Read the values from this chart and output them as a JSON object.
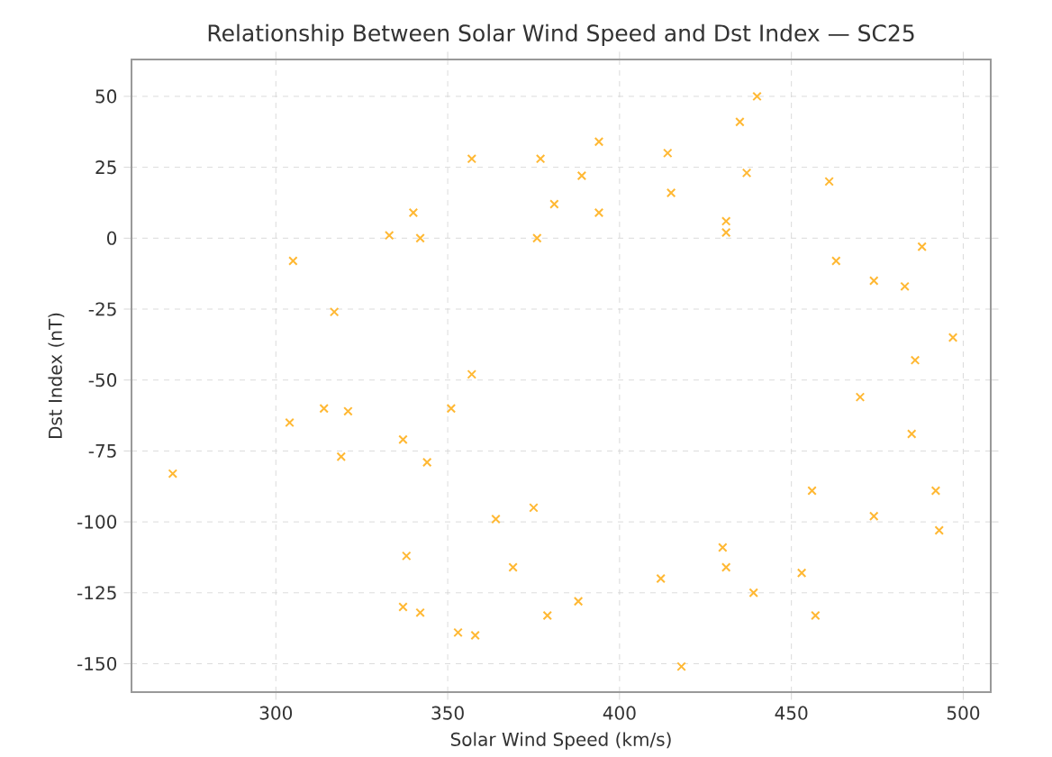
{
  "chart_data": {
    "type": "scatter",
    "title": "Relationship Between Solar Wind Speed and Dst Index — SC25",
    "xlabel": "Solar Wind Speed (km/s)",
    "ylabel": "Dst Index (nT)",
    "marker": "cross",
    "grid": true,
    "xlim": [
      258,
      508
    ],
    "ylim": [
      -160,
      63
    ],
    "xticks": [
      300,
      350,
      400,
      450,
      500
    ],
    "yticks": [
      -150,
      -125,
      -100,
      -75,
      -50,
      -25,
      0,
      25,
      50
    ],
    "series": [
      {
        "color": "#ffb833",
        "x": [
          270,
          305,
          304,
          317,
          314,
          321,
          319,
          333,
          340,
          342,
          337,
          344,
          338,
          337,
          342,
          351,
          357,
          357,
          353,
          358,
          364,
          369,
          375,
          379,
          381,
          376,
          377,
          389,
          394,
          394,
          388,
          414,
          415,
          412,
          418,
          435,
          437,
          440,
          431,
          431,
          430,
          431,
          439,
          461,
          463,
          474,
          483,
          488,
          486,
          470,
          497,
          456,
          474,
          485,
          492,
          493,
          453,
          457
        ],
        "values": [
          -83,
          -8,
          -65,
          -26,
          -60,
          -61,
          -77,
          1,
          9,
          0,
          -71,
          -79,
          -112,
          -130,
          -132,
          -60,
          -48,
          28,
          -139,
          -140,
          -99,
          -116,
          -95,
          -133,
          12,
          0,
          28,
          22,
          34,
          9,
          -128,
          30,
          16,
          -120,
          -151,
          41,
          23,
          50,
          6,
          2,
          -109,
          -116,
          -125,
          20,
          -8,
          -15,
          -17,
          -3,
          -43,
          -56,
          -35,
          -89,
          -98,
          -69,
          -89,
          -103,
          -118,
          -133
        ]
      }
    ]
  }
}
